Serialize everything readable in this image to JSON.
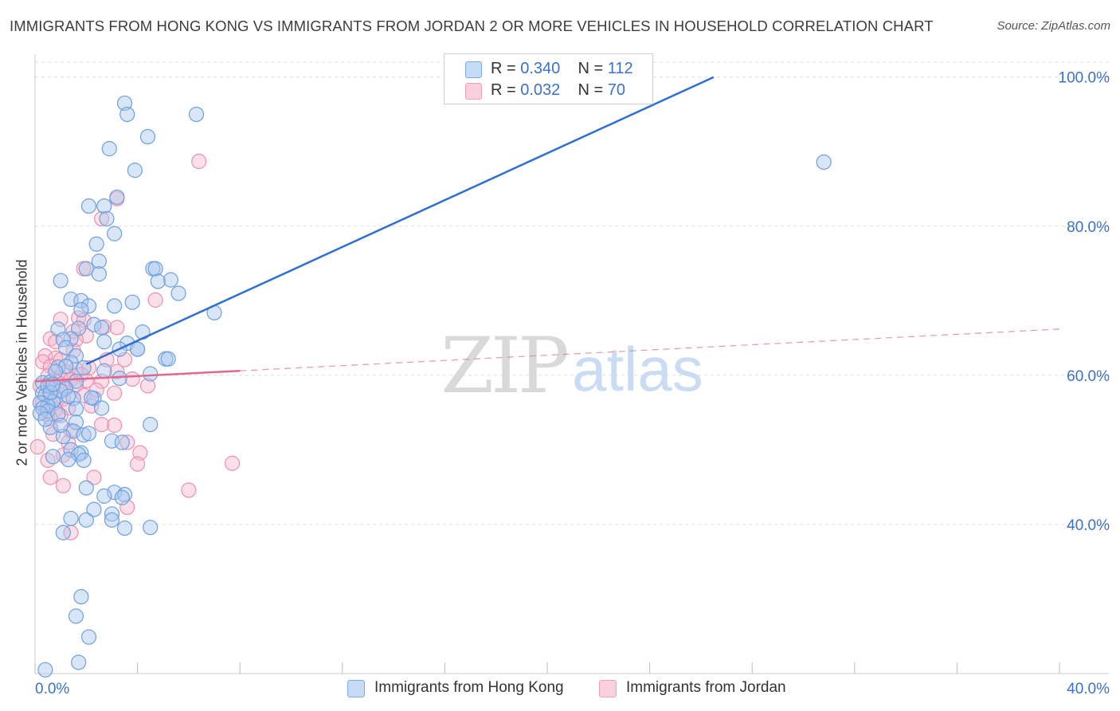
{
  "title": "IMMIGRANTS FROM HONG KONG VS IMMIGRANTS FROM JORDAN 2 OR MORE VEHICLES IN HOUSEHOLD CORRELATION CHART",
  "source": "Source: ZipAtlas.com",
  "watermark": {
    "zip": "ZIP",
    "atlas": "atlas"
  },
  "legend_top": [
    {
      "r_label": "R =",
      "r_value": "0.340",
      "n_label": "N =",
      "n_value": "112"
    },
    {
      "r_label": "R =",
      "r_value": "0.032",
      "n_label": "N =",
      "n_value": "70"
    }
  ],
  "colors": {
    "hong_kong_fill": "#a9c8f0",
    "hong_kong_stroke": "#6f9fde",
    "hong_kong_line": "#2f6fd0",
    "jordan_fill": "#f7b9cc",
    "jordan_stroke": "#eb90ab",
    "jordan_line": "#e0678f",
    "tick_label": "#3a72c9",
    "grid": "#dddddd"
  },
  "chart_data": {
    "type": "scatter",
    "title": "IMMIGRANTS FROM HONG KONG VS IMMIGRANTS FROM JORDAN 2 OR MORE VEHICLES IN HOUSEHOLD CORRELATION CHART",
    "xlabel": "",
    "ylabel": "2 or more Vehicles in Household",
    "xlim": [
      0,
      40
    ],
    "ylim": [
      20,
      102
    ],
    "x_tick_labels": [
      "0.0%",
      "40.0%"
    ],
    "y_ticks": [
      40,
      60,
      80,
      100
    ],
    "y_tick_labels": [
      "40.0%",
      "60.0%",
      "80.0%",
      "100.0%"
    ],
    "grid": true,
    "legend_position": "top-center",
    "series": [
      {
        "name": "Immigrants from Hong Kong",
        "r": 0.34,
        "n": 112,
        "trend": {
          "x": [
            2.0,
            26.5
          ],
          "y": [
            61.5,
            100.0
          ],
          "style": "solid"
        },
        "points": [
          [
            3.5,
            96.5
          ],
          [
            3.6,
            95.0
          ],
          [
            6.3,
            95.0
          ],
          [
            4.4,
            92.0
          ],
          [
            2.9,
            90.4
          ],
          [
            3.9,
            87.5
          ],
          [
            30.8,
            88.6
          ],
          [
            3.2,
            83.9
          ],
          [
            2.1,
            82.7
          ],
          [
            2.7,
            82.7
          ],
          [
            2.8,
            81.0
          ],
          [
            3.1,
            79.0
          ],
          [
            2.4,
            77.6
          ],
          [
            2.5,
            75.3
          ],
          [
            2.0,
            74.3
          ],
          [
            4.6,
            74.3
          ],
          [
            4.7,
            74.3
          ],
          [
            2.5,
            73.6
          ],
          [
            1.0,
            72.7
          ],
          [
            5.3,
            72.8
          ],
          [
            4.8,
            72.6
          ],
          [
            5.6,
            71.0
          ],
          [
            1.4,
            70.2
          ],
          [
            1.8,
            70.0
          ],
          [
            3.1,
            69.3
          ],
          [
            3.8,
            69.8
          ],
          [
            2.1,
            69.3
          ],
          [
            7.0,
            68.4
          ],
          [
            1.8,
            68.8
          ],
          [
            2.3,
            66.8
          ],
          [
            1.7,
            66.3
          ],
          [
            2.6,
            66.4
          ],
          [
            0.9,
            66.2
          ],
          [
            4.2,
            65.8
          ],
          [
            1.4,
            64.9
          ],
          [
            2.7,
            64.5
          ],
          [
            1.1,
            64.8
          ],
          [
            3.6,
            64.3
          ],
          [
            4.0,
            63.5
          ],
          [
            1.2,
            63.7
          ],
          [
            4.0,
            63.5
          ],
          [
            3.3,
            63.5
          ],
          [
            1.6,
            62.6
          ],
          [
            5.1,
            62.2
          ],
          [
            5.2,
            62.2
          ],
          [
            1.4,
            61.7
          ],
          [
            0.9,
            61.1
          ],
          [
            1.9,
            61.0
          ],
          [
            2.7,
            60.6
          ],
          [
            4.5,
            60.2
          ],
          [
            3.3,
            59.6
          ],
          [
            1.6,
            59.2
          ],
          [
            0.3,
            59.0
          ],
          [
            0.6,
            59.1
          ],
          [
            1.2,
            58.2
          ],
          [
            0.3,
            57.6
          ],
          [
            0.4,
            57.3
          ],
          [
            0.8,
            56.9
          ],
          [
            1.5,
            56.9
          ],
          [
            2.3,
            56.9
          ],
          [
            0.7,
            56.5
          ],
          [
            0.2,
            56.3
          ],
          [
            0.5,
            55.9
          ],
          [
            0.3,
            55.6
          ],
          [
            1.6,
            55.5
          ],
          [
            2.6,
            55.6
          ],
          [
            0.5,
            55.2
          ],
          [
            0.2,
            54.9
          ],
          [
            1.6,
            53.7
          ],
          [
            4.5,
            53.4
          ],
          [
            0.6,
            53.0
          ],
          [
            1.5,
            52.5
          ],
          [
            1.9,
            52.0
          ],
          [
            2.1,
            52.2
          ],
          [
            1.1,
            51.8
          ],
          [
            3.0,
            51.2
          ],
          [
            3.4,
            51.0
          ],
          [
            1.4,
            50.0
          ],
          [
            1.8,
            49.6
          ],
          [
            1.7,
            49.4
          ],
          [
            0.7,
            49.1
          ],
          [
            1.3,
            48.7
          ],
          [
            1.9,
            48.6
          ],
          [
            2.0,
            44.9
          ],
          [
            3.1,
            44.3
          ],
          [
            3.5,
            44.0
          ],
          [
            2.7,
            43.8
          ],
          [
            3.4,
            43.6
          ],
          [
            2.3,
            42.0
          ],
          [
            3.0,
            41.4
          ],
          [
            1.4,
            40.8
          ],
          [
            2.0,
            40.6
          ],
          [
            3.0,
            40.6
          ],
          [
            3.5,
            39.5
          ],
          [
            4.5,
            39.6
          ],
          [
            1.1,
            38.9
          ],
          [
            1.8,
            30.3
          ],
          [
            1.6,
            27.7
          ],
          [
            2.1,
            24.9
          ],
          [
            1.7,
            21.5
          ],
          [
            0.4,
            20.5
          ],
          [
            1.2,
            61.2
          ],
          [
            0.8,
            60.5
          ],
          [
            0.5,
            58.6
          ],
          [
            1.0,
            57.9
          ],
          [
            0.6,
            57.7
          ],
          [
            1.3,
            57.2
          ],
          [
            0.9,
            54.8
          ],
          [
            0.4,
            54.1
          ],
          [
            1.0,
            53.3
          ],
          [
            2.2,
            57.0
          ],
          [
            0.7,
            58.8
          ]
        ]
      },
      {
        "name": "Immigrants from Jordan",
        "r": 0.032,
        "n": 70,
        "trend": {
          "x": [
            0.0,
            8.0
          ],
          "y": [
            59.2,
            60.6
          ],
          "style": "solid"
        },
        "trend_extension": {
          "x": [
            8.0,
            40.0
          ],
          "y": [
            60.6,
            66.2
          ],
          "style": "dashed"
        },
        "points": [
          [
            6.4,
            88.7
          ],
          [
            3.2,
            83.7
          ],
          [
            2.6,
            81.0
          ],
          [
            1.9,
            74.3
          ],
          [
            4.7,
            70.1
          ],
          [
            1.7,
            67.7
          ],
          [
            1.0,
            67.5
          ],
          [
            1.9,
            67.4
          ],
          [
            2.7,
            66.5
          ],
          [
            3.2,
            66.4
          ],
          [
            1.5,
            65.9
          ],
          [
            2.0,
            65.3
          ],
          [
            0.6,
            64.9
          ],
          [
            1.6,
            64.8
          ],
          [
            0.8,
            64.5
          ],
          [
            1.5,
            63.3
          ],
          [
            0.4,
            62.6
          ],
          [
            0.8,
            62.3
          ],
          [
            1.0,
            62.1
          ],
          [
            2.8,
            62.1
          ],
          [
            3.5,
            62.1
          ],
          [
            0.3,
            61.8
          ],
          [
            0.6,
            61.2
          ],
          [
            2.1,
            61.0
          ],
          [
            1.6,
            60.8
          ],
          [
            3.2,
            60.5
          ],
          [
            1.2,
            60.4
          ],
          [
            1.8,
            60.1
          ],
          [
            0.5,
            59.9
          ],
          [
            1.0,
            59.7
          ],
          [
            1.4,
            59.4
          ],
          [
            2.0,
            59.3
          ],
          [
            2.6,
            59.2
          ],
          [
            3.8,
            59.5
          ],
          [
            0.9,
            59.0
          ],
          [
            1.6,
            58.7
          ],
          [
            0.2,
            58.6
          ],
          [
            4.4,
            58.6
          ],
          [
            1.2,
            58.4
          ],
          [
            0.7,
            58.2
          ],
          [
            2.4,
            58.0
          ],
          [
            3.1,
            57.6
          ],
          [
            1.9,
            57.3
          ],
          [
            0.5,
            57.0
          ],
          [
            1.1,
            56.8
          ],
          [
            0.3,
            56.3
          ],
          [
            2.2,
            55.9
          ],
          [
            1.3,
            55.6
          ],
          [
            0.8,
            55.4
          ],
          [
            0.4,
            54.9
          ],
          [
            1.0,
            54.6
          ],
          [
            0.6,
            54.2
          ],
          [
            2.6,
            53.4
          ],
          [
            3.1,
            53.3
          ],
          [
            1.4,
            52.6
          ],
          [
            0.7,
            52.1
          ],
          [
            1.3,
            51.0
          ],
          [
            3.6,
            51.0
          ],
          [
            0.1,
            50.4
          ],
          [
            4.1,
            49.6
          ],
          [
            1.1,
            49.3
          ],
          [
            0.5,
            48.6
          ],
          [
            4.0,
            48.1
          ],
          [
            7.7,
            48.2
          ],
          [
            2.3,
            46.3
          ],
          [
            0.6,
            46.3
          ],
          [
            1.1,
            45.2
          ],
          [
            6.0,
            44.6
          ],
          [
            3.6,
            42.3
          ],
          [
            1.4,
            38.9
          ]
        ]
      }
    ]
  }
}
